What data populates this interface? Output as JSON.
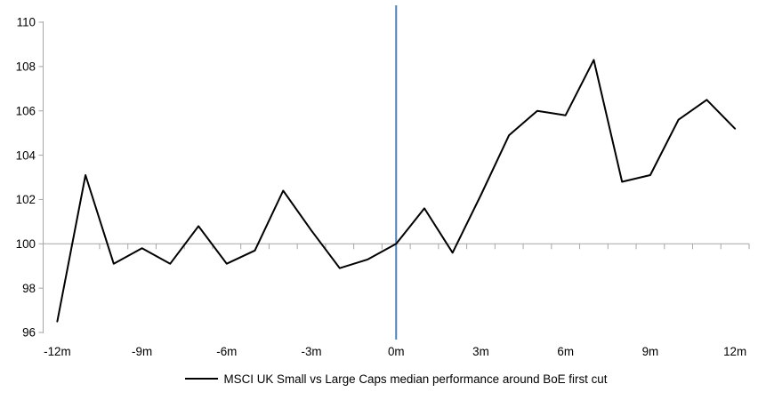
{
  "chart_data": {
    "type": "line",
    "title": "",
    "xlabel": "",
    "ylabel": "",
    "x_months": [
      -12,
      -11,
      -10,
      -9,
      -8,
      -7,
      -6,
      -5,
      -4,
      -3,
      -2,
      -1,
      0,
      1,
      2,
      3,
      4,
      5,
      6,
      7,
      8,
      9,
      10,
      11,
      12
    ],
    "series": [
      {
        "name": "MSCI UK Small vs Large Caps median performance around BoE first cut",
        "values": [
          96.5,
          103.1,
          99.1,
          99.8,
          99.1,
          100.8,
          99.1,
          99.7,
          102.4,
          100.6,
          98.9,
          99.3,
          100.0,
          101.6,
          99.6,
          102.2,
          104.9,
          106.0,
          105.8,
          108.3,
          102.8,
          103.1,
          105.6,
          106.5,
          105.2
        ]
      }
    ],
    "ylim": [
      96,
      110
    ],
    "y_tick_step": 2,
    "y_tick_labels": [
      "96",
      "98",
      "100",
      "102",
      "104",
      "106",
      "108",
      "110"
    ],
    "x_tick_label_months": [
      -12,
      -9,
      -6,
      -3,
      0,
      3,
      6,
      9,
      12
    ],
    "x_tick_labels": [
      "-12m",
      "-9m",
      "-6m",
      "-3m",
      "0m",
      "3m",
      "6m",
      "9m",
      "12m"
    ],
    "baseline_value": 100,
    "event_line_month": 0,
    "grid": "baseline-only",
    "legend_position": "bottom",
    "colors": {
      "series_line": "#000000",
      "event_line": "#4f81bd",
      "axis": "#a6a6a6",
      "baseline": "#a6a6a6",
      "text": "#000000",
      "background": "#ffffff"
    }
  }
}
